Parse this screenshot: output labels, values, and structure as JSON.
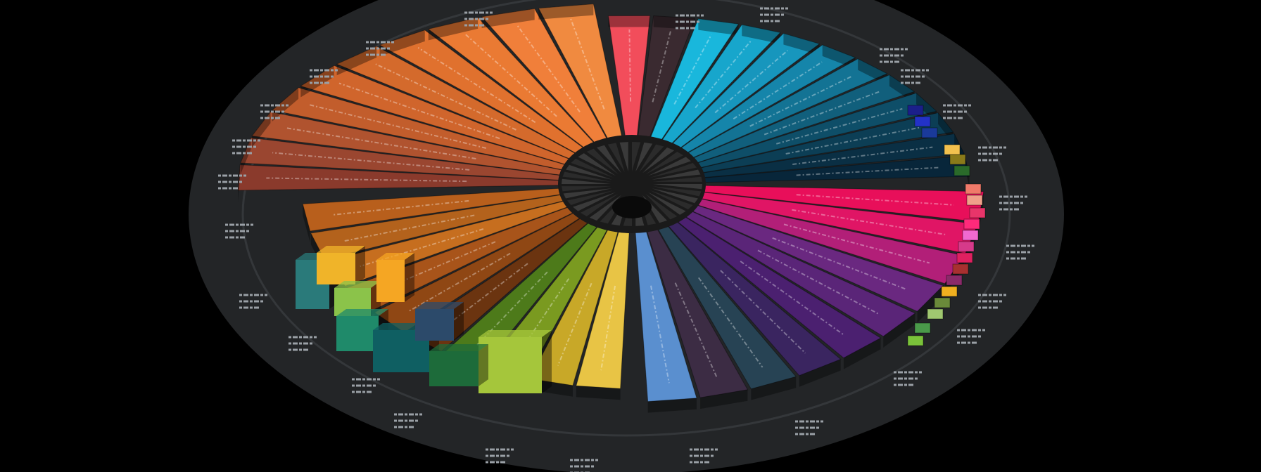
{
  "scene": {
    "background": "#000000",
    "disk_color": "#242628",
    "rim_color": "#34373a",
    "hub_color": "#101010"
  },
  "palette": {
    "orange_family": [
      "#8a3a2c",
      "#9a4630",
      "#b0532f",
      "#c25d2c",
      "#d0652c",
      "#d46a2c",
      "#e0712e",
      "#ea7a33",
      "#f07f3a",
      "#f08a40"
    ],
    "warm_lower": [
      "#b85f1c",
      "#b3621c",
      "#c66e1f",
      "#a8541a",
      "#8f4714",
      "#6b3410",
      "#4d7a1a",
      "#7a9a20",
      "#c8a828",
      "#e8c445"
    ],
    "cool_top": [
      "#f24d5b",
      "#3a2a30",
      "#19b7dc",
      "#17a6cc",
      "#1796bd",
      "#1585aa",
      "#137394",
      "#115f7c",
      "#0e4e68",
      "#0c3e55",
      "#0a2f44",
      "#08263a"
    ],
    "purple_lower": [
      "#5a8fcf",
      "#3c2c44",
      "#274354",
      "#3a2560",
      "#4b2070",
      "#5a2578",
      "#6a2880",
      "#b21f78",
      "#e01565",
      "#e80f5a"
    ],
    "blocks": [
      "#2a7a7a",
      "#f0b429",
      "#8bc34a",
      "#1f8a6a",
      "#f5a623",
      "#0f5f62",
      "#2c4a6a",
      "#a5c63b",
      "#1d6b3a"
    ],
    "swatches": [
      "#1b1f8a",
      "#2332c8",
      "#1a3a9a",
      "#f2c14e",
      "#8a7a1a",
      "#2a6a2a",
      "#f07a6a",
      "#f0a08a",
      "#e8356a",
      "#ff2a7a",
      "#f06ad0",
      "#d63a8a",
      "#e02060",
      "#a83030",
      "#8a2a6a",
      "#f0b020",
      "#6a8a3a",
      "#a0c870",
      "#4a9a4a",
      "#7ac23a"
    ]
  }
}
